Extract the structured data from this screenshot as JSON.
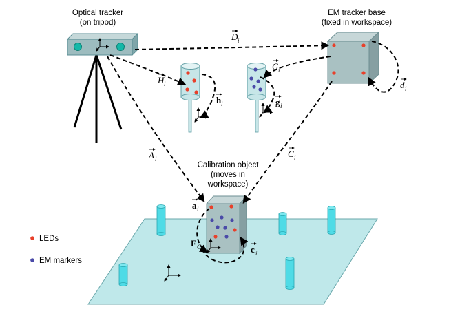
{
  "labels": {
    "optical_tracker": [
      "Optical tracker",
      "(on tripod)"
    ],
    "em_base": [
      "EM tracker base",
      "(fixed in workspace)"
    ],
    "calibration": [
      "Calibration object",
      "(moves in",
      "workspace)"
    ]
  },
  "vectors": {
    "D": {
      "letter": "D",
      "sub": "i"
    },
    "G": {
      "letter": "G",
      "sub": "i"
    },
    "H": {
      "letter": "H",
      "sub": "i"
    },
    "h": {
      "letter": "h",
      "sub": "i"
    },
    "g": {
      "letter": "g",
      "sub": "i"
    },
    "d": {
      "letter": "d",
      "sub": "i"
    },
    "A": {
      "letter": "A",
      "sub": "i"
    },
    "C": {
      "letter": "C",
      "sub": "i"
    },
    "a": {
      "letter": "a",
      "sub": "i"
    },
    "c": {
      "letter": "c",
      "sub": "i"
    },
    "F": {
      "letter": "F",
      "sub": "C"
    }
  },
  "legend": {
    "leds": "LEDs",
    "em_markers": "EM markers",
    "led_color": "#e8402a",
    "em_color": "#4a4aa8"
  },
  "colors": {
    "workspace": "#bfe8ea",
    "cylinder": "#4fdbe6",
    "box": "#a9c1c2",
    "tracker_dot": "#14b8a8"
  }
}
